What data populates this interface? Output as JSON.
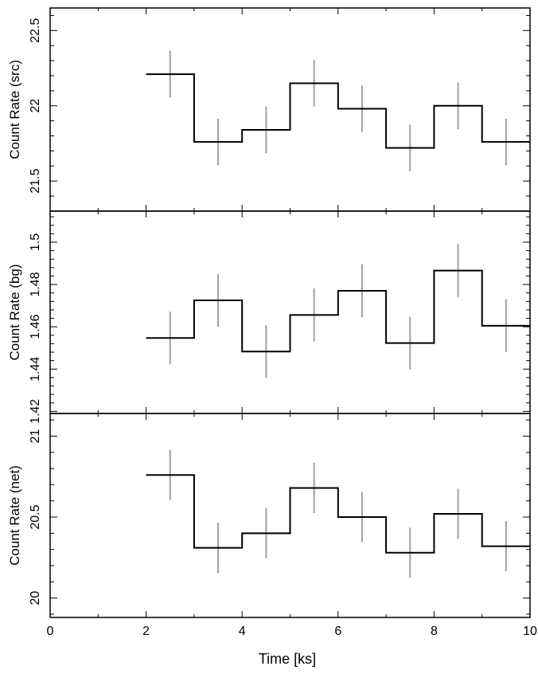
{
  "colors": {
    "step": "#000000",
    "error_bar": "#a0a0a0",
    "axis": "#000000",
    "background": "#ffffff"
  },
  "chart_data": [
    {
      "type": "line",
      "title": "",
      "xlabel": "",
      "ylabel": "Count Rate (src)",
      "xlim": [
        0,
        10
      ],
      "ylim": [
        21.3,
        22.65
      ],
      "yticks": [
        21.5,
        22,
        22.5
      ],
      "ytick_labels": [
        "21.5",
        "22",
        "22.5"
      ],
      "x_bin_edges": [
        2,
        3,
        4,
        5,
        6,
        7,
        8,
        9,
        10
      ],
      "x_centers": [
        2.5,
        3.5,
        4.5,
        5.5,
        6.5,
        7.5,
        8.5,
        9.5
      ],
      "values": [
        22.21,
        21.76,
        21.84,
        22.15,
        21.98,
        21.72,
        22.0,
        21.76
      ],
      "errors": [
        0.155,
        0.155,
        0.155,
        0.155,
        0.155,
        0.155,
        0.155,
        0.155
      ]
    },
    {
      "type": "line",
      "title": "",
      "xlabel": "",
      "ylabel": "Count Rate (bg)",
      "xlim": [
        0,
        10
      ],
      "ylim": [
        1.419,
        1.5147
      ],
      "yticks": [
        1.42,
        1.44,
        1.46,
        1.48,
        1.5
      ],
      "ytick_labels": [
        "1.42",
        "1.44",
        "1.46",
        "1.48",
        "1.5"
      ],
      "x_bin_edges": [
        2,
        3,
        4,
        5,
        6,
        7,
        8,
        9,
        10
      ],
      "x_centers": [
        2.5,
        3.5,
        4.5,
        5.5,
        6.5,
        7.5,
        8.5,
        9.5
      ],
      "values": [
        1.4547,
        1.4725,
        1.4483,
        1.4656,
        1.477,
        1.4523,
        1.4866,
        1.4605
      ],
      "errors": [
        0.0125,
        0.0125,
        0.0125,
        0.0125,
        0.0125,
        0.0125,
        0.0125,
        0.0125
      ]
    },
    {
      "type": "line",
      "title": "",
      "xlabel": "Time [ks]",
      "ylabel": "Count Rate (net)",
      "xlim": [
        0,
        10
      ],
      "ylim": [
        19.88,
        21.14
      ],
      "yticks": [
        20,
        20.5,
        21
      ],
      "ytick_labels": [
        "20",
        "20.5",
        "21"
      ],
      "xticks": [
        0,
        2,
        4,
        6,
        8,
        10
      ],
      "xtick_labels": [
        "0",
        "2",
        "4",
        "6",
        "8",
        "10"
      ],
      "x_bin_edges": [
        2,
        3,
        4,
        5,
        6,
        7,
        8,
        9,
        10
      ],
      "x_centers": [
        2.5,
        3.5,
        4.5,
        5.5,
        6.5,
        7.5,
        8.5,
        9.5
      ],
      "values": [
        20.76,
        20.31,
        20.4,
        20.68,
        20.5,
        20.28,
        20.52,
        20.32
      ],
      "errors": [
        0.155,
        0.155,
        0.155,
        0.155,
        0.155,
        0.155,
        0.155,
        0.155
      ]
    }
  ]
}
